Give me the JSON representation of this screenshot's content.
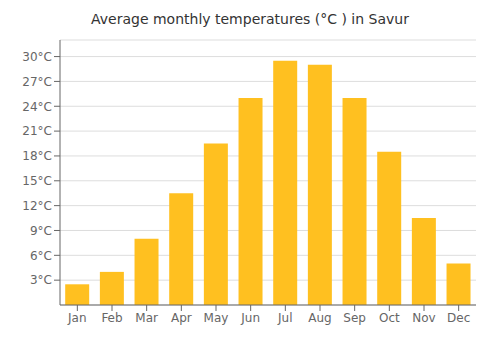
{
  "chart_data": {
    "type": "bar",
    "title": "Average monthly temperatures (°C ) in Savur",
    "categories": [
      "Jan",
      "Feb",
      "Mar",
      "Apr",
      "May",
      "Jun",
      "Jul",
      "Aug",
      "Sep",
      "Oct",
      "Nov",
      "Dec"
    ],
    "values": [
      2.5,
      4.0,
      8.0,
      13.5,
      19.5,
      25.0,
      29.5,
      29.0,
      25.0,
      18.5,
      10.5,
      5.0
    ],
    "color": "#FFC020",
    "ylim": [
      0,
      32
    ],
    "yticks": [
      {
        "value": 3,
        "label": "3°C"
      },
      {
        "value": 6,
        "label": "6°C"
      },
      {
        "value": 9,
        "label": "9°C"
      },
      {
        "value": 12,
        "label": "12°C"
      },
      {
        "value": 15,
        "label": "15°C"
      },
      {
        "value": 18,
        "label": "18°C"
      },
      {
        "value": 21,
        "label": "21°C"
      },
      {
        "value": 24,
        "label": "24°C"
      },
      {
        "value": 27,
        "label": "27°C"
      },
      {
        "value": 30,
        "label": "30°C"
      }
    ],
    "grid": true
  }
}
